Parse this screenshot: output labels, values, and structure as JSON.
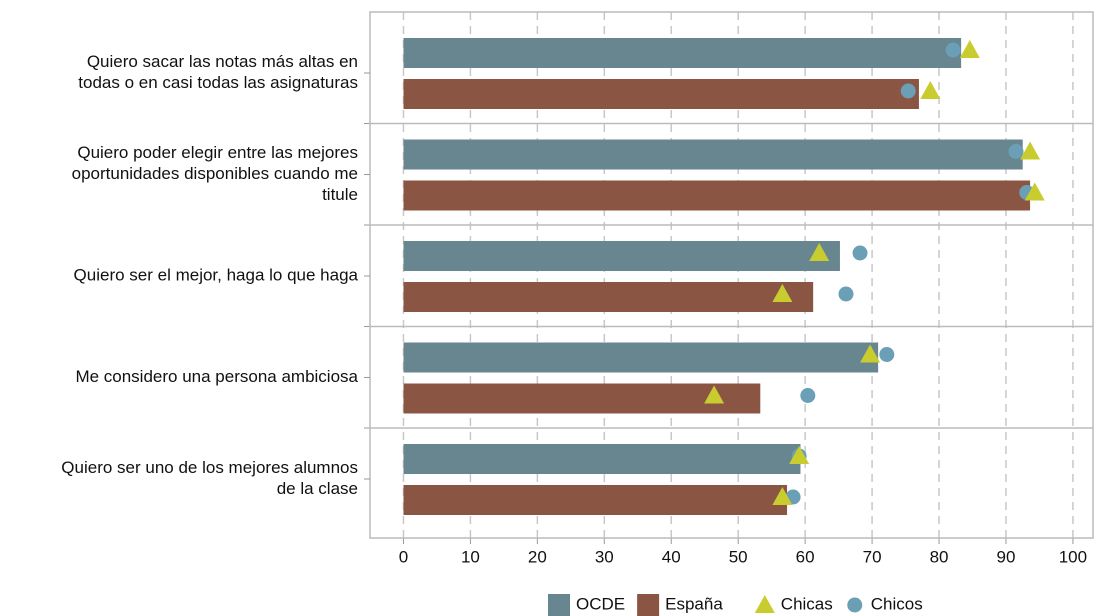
{
  "chart_data": {
    "type": "bar",
    "categories": [
      [
        "Quiero sacar las notas más altas en",
        "todas o en casi todas las asignaturas"
      ],
      [
        "Quiero poder elegir entre las mejores",
        "oportunidades disponibles cuando me",
        "titule"
      ],
      [
        "Quiero ser el mejor, haga lo que haga"
      ],
      [
        "Me considero una persona ambiciosa"
      ],
      [
        "Quiero ser uno de los mejores alumnos",
        "de la clase"
      ]
    ],
    "series": [
      {
        "name": "OCDE",
        "color": "#688690",
        "values": [
          83.3,
          92.5,
          65.2,
          70.9,
          59.3
        ]
      },
      {
        "name": "España",
        "color": "#8b5543",
        "values": [
          77.0,
          93.6,
          61.2,
          53.3,
          57.3
        ]
      }
    ],
    "markers": [
      {
        "name": "Chicas",
        "color": "#c9cc2e",
        "shape": "triangle",
        "values": [
          [
            84.6,
            78.7
          ],
          [
            93.6,
            94.3
          ],
          [
            62.1,
            56.6
          ],
          [
            69.7,
            46.4
          ],
          [
            59.1,
            56.6
          ]
        ]
      },
      {
        "name": "Chicos",
        "color": "#6a9fb5",
        "shape": "circle",
        "values": [
          [
            82.1,
            75.4
          ],
          [
            91.5,
            93.1
          ],
          [
            68.2,
            66.1
          ],
          [
            72.2,
            60.4
          ],
          [
            59.1,
            58.2
          ]
        ]
      }
    ],
    "xlim": [
      -5,
      103
    ],
    "xticks": [
      0,
      10,
      20,
      30,
      40,
      50,
      60,
      70,
      80,
      90,
      100
    ],
    "grid": true
  }
}
